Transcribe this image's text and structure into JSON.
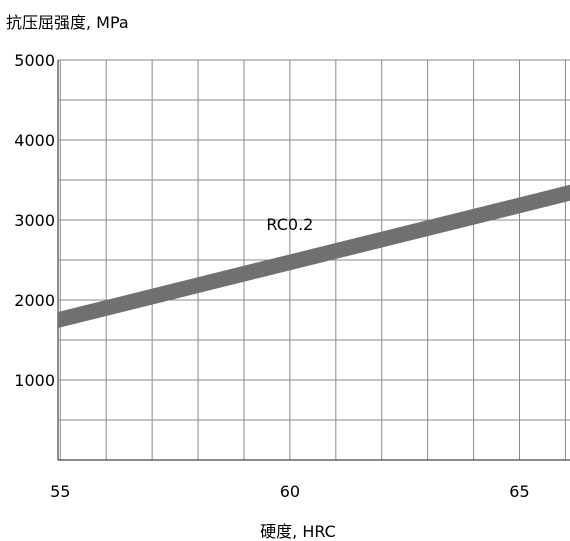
{
  "chart_data": {
    "type": "area",
    "title": "",
    "ylabel": "抗压屈强度, MPa",
    "xlabel": "硬度, HRC",
    "xlim": [
      54.95,
      66.1
    ],
    "ylim": [
      0,
      5000
    ],
    "x_ticks": [
      55,
      60,
      65
    ],
    "y_ticks": [
      1000,
      2000,
      3000,
      4000,
      5000
    ],
    "grid": true,
    "band": {
      "name": "RC0.2",
      "color": "#707070",
      "x": [
        54.95,
        66.1
      ],
      "upper": [
        1850,
        3440
      ],
      "lower": [
        1650,
        3240
      ]
    },
    "annotations": [
      {
        "text": "RC0.2",
        "x": 60,
        "y": 2950
      }
    ]
  }
}
